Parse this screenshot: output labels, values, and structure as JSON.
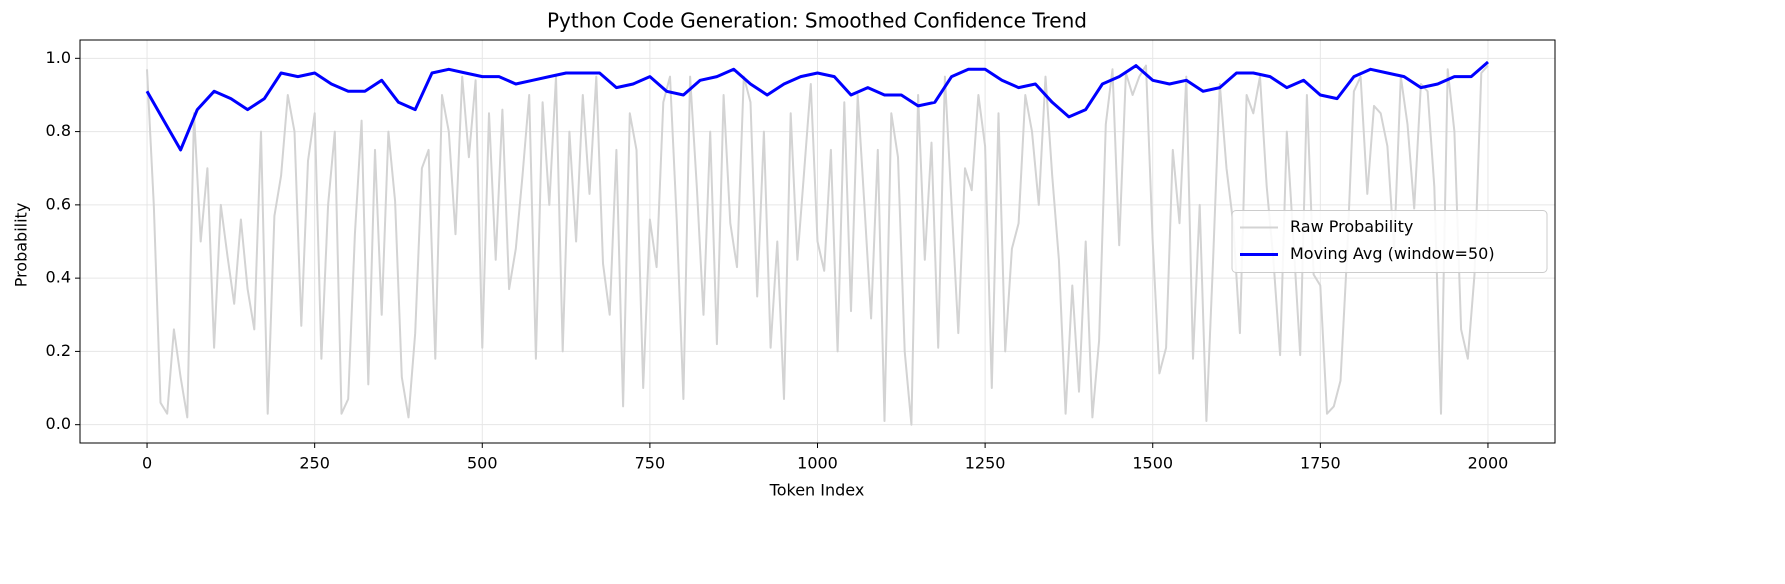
{
  "chart_data": {
    "type": "line",
    "title": "Python Code Generation: Smoothed Confidence Trend",
    "x_label": "Token Index",
    "y_label": "Probability",
    "xlim": [
      -100,
      2100
    ],
    "xticks": [
      0,
      250,
      500,
      750,
      1000,
      1250,
      1500,
      1750,
      2000
    ],
    "ylim": [
      -0.05,
      1.05
    ],
    "yticks": [
      {
        "value": 0,
        "label": "0.0"
      },
      0.2,
      0.4,
      0.6,
      0.8,
      {
        "value": 1,
        "label": "1.0"
      }
    ],
    "grid": true,
    "legend_position": "right",
    "series": [
      {
        "name": "Raw Probability",
        "color": "#d3d3d3",
        "width": 2,
        "x": [
          0,
          10,
          20,
          30,
          40,
          50,
          60,
          70,
          80,
          90,
          100,
          110,
          120,
          130,
          140,
          150,
          160,
          170,
          180,
          190,
          200,
          210,
          220,
          230,
          240,
          250,
          260,
          270,
          280,
          290,
          300,
          310,
          320,
          330,
          340,
          350,
          360,
          370,
          380,
          390,
          400,
          410,
          420,
          430,
          440,
          450,
          460,
          470,
          480,
          490,
          500,
          510,
          520,
          530,
          540,
          550,
          560,
          570,
          580,
          590,
          600,
          610,
          620,
          630,
          640,
          650,
          660,
          670,
          680,
          690,
          700,
          710,
          720,
          730,
          740,
          750,
          760,
          770,
          780,
          790,
          800,
          810,
          820,
          830,
          840,
          850,
          860,
          870,
          880,
          890,
          900,
          910,
          920,
          930,
          940,
          950,
          960,
          970,
          980,
          990,
          1000,
          1010,
          1020,
          1030,
          1040,
          1050,
          1060,
          1070,
          1080,
          1090,
          1100,
          1110,
          1120,
          1130,
          1140,
          1150,
          1160,
          1170,
          1180,
          1190,
          1200,
          1210,
          1220,
          1230,
          1240,
          1250,
          1260,
          1270,
          1280,
          1290,
          1300,
          1310,
          1320,
          1330,
          1340,
          1350,
          1360,
          1370,
          1380,
          1390,
          1400,
          1410,
          1420,
          1430,
          1440,
          1450,
          1460,
          1470,
          1480,
          1490,
          1500,
          1510,
          1520,
          1530,
          1540,
          1550,
          1560,
          1570,
          1580,
          1590,
          1600,
          1610,
          1620,
          1630,
          1640,
          1650,
          1660,
          1670,
          1680,
          1690,
          1700,
          1710,
          1720,
          1730,
          1740,
          1750,
          1760,
          1770,
          1780,
          1790,
          1800,
          1810,
          1820,
          1830,
          1840,
          1850,
          1860,
          1870,
          1880,
          1890,
          1900,
          1910,
          1920,
          1930,
          1940,
          1950,
          1960,
          1970,
          1980,
          1990,
          2000
        ],
        "values": [
          0.97,
          0.6,
          0.06,
          0.03,
          0.26,
          0.13,
          0.02,
          0.85,
          0.5,
          0.7,
          0.21,
          0.6,
          0.46,
          0.33,
          0.56,
          0.37,
          0.26,
          0.8,
          0.03,
          0.57,
          0.68,
          0.9,
          0.8,
          0.27,
          0.72,
          0.85,
          0.18,
          0.6,
          0.8,
          0.03,
          0.07,
          0.52,
          0.83,
          0.11,
          0.75,
          0.3,
          0.8,
          0.61,
          0.13,
          0.02,
          0.25,
          0.7,
          0.75,
          0.18,
          0.9,
          0.8,
          0.52,
          0.95,
          0.73,
          0.94,
          0.21,
          0.85,
          0.45,
          0.86,
          0.37,
          0.48,
          0.68,
          0.9,
          0.18,
          0.88,
          0.6,
          0.95,
          0.2,
          0.8,
          0.5,
          0.9,
          0.63,
          0.95,
          0.44,
          0.3,
          0.75,
          0.05,
          0.85,
          0.75,
          0.1,
          0.56,
          0.43,
          0.88,
          0.95,
          0.56,
          0.07,
          0.95,
          0.65,
          0.3,
          0.8,
          0.22,
          0.9,
          0.55,
          0.43,
          0.95,
          0.88,
          0.35,
          0.8,
          0.21,
          0.5,
          0.07,
          0.85,
          0.45,
          0.69,
          0.93,
          0.5,
          0.42,
          0.75,
          0.2,
          0.88,
          0.31,
          0.9,
          0.6,
          0.29,
          0.75,
          0.01,
          0.85,
          0.73,
          0.2,
          0.0,
          0.9,
          0.45,
          0.77,
          0.21,
          0.95,
          0.6,
          0.25,
          0.7,
          0.64,
          0.9,
          0.76,
          0.1,
          0.85,
          0.2,
          0.48,
          0.55,
          0.9,
          0.8,
          0.6,
          0.95,
          0.68,
          0.45,
          0.03,
          0.38,
          0.09,
          0.5,
          0.02,
          0.23,
          0.82,
          0.97,
          0.49,
          0.96,
          0.9,
          0.95,
          0.98,
          0.5,
          0.14,
          0.21,
          0.75,
          0.55,
          0.95,
          0.18,
          0.6,
          0.01,
          0.45,
          0.93,
          0.7,
          0.55,
          0.25,
          0.9,
          0.85,
          0.95,
          0.65,
          0.45,
          0.19,
          0.8,
          0.5,
          0.19,
          0.9,
          0.41,
          0.38,
          0.03,
          0.05,
          0.12,
          0.47,
          0.91,
          0.95,
          0.63,
          0.87,
          0.85,
          0.76,
          0.48,
          0.95,
          0.82,
          0.59,
          0.93,
          0.91,
          0.65,
          0.03,
          0.97,
          0.8,
          0.26,
          0.18,
          0.41,
          0.96,
          0.98
        ]
      },
      {
        "name": "Moving Avg (window=50)",
        "color": "#0000ff",
        "width": 3,
        "x": [
          0,
          25,
          50,
          75,
          100,
          125,
          150,
          175,
          200,
          225,
          250,
          275,
          300,
          325,
          350,
          375,
          400,
          425,
          450,
          475,
          500,
          525,
          550,
          575,
          600,
          625,
          650,
          675,
          700,
          725,
          750,
          775,
          800,
          825,
          850,
          875,
          900,
          925,
          950,
          975,
          1000,
          1025,
          1050,
          1075,
          1100,
          1125,
          1150,
          1175,
          1200,
          1225,
          1250,
          1275,
          1300,
          1325,
          1350,
          1375,
          1400,
          1425,
          1450,
          1475,
          1500,
          1525,
          1550,
          1575,
          1600,
          1625,
          1650,
          1675,
          1700,
          1725,
          1750,
          1775,
          1800,
          1825,
          1850,
          1875,
          1900,
          1925,
          1950,
          1975,
          2000
        ],
        "values": [
          0.91,
          0.83,
          0.75,
          0.86,
          0.91,
          0.89,
          0.86,
          0.89,
          0.96,
          0.95,
          0.96,
          0.93,
          0.91,
          0.91,
          0.94,
          0.88,
          0.86,
          0.96,
          0.97,
          0.96,
          0.95,
          0.95,
          0.93,
          0.94,
          0.95,
          0.96,
          0.96,
          0.96,
          0.92,
          0.93,
          0.95,
          0.91,
          0.9,
          0.94,
          0.95,
          0.97,
          0.93,
          0.9,
          0.93,
          0.95,
          0.96,
          0.95,
          0.9,
          0.92,
          0.9,
          0.9,
          0.87,
          0.88,
          0.95,
          0.97,
          0.97,
          0.94,
          0.92,
          0.93,
          0.88,
          0.84,
          0.86,
          0.93,
          0.95,
          0.98,
          0.94,
          0.93,
          0.94,
          0.91,
          0.92,
          0.96,
          0.96,
          0.95,
          0.92,
          0.94,
          0.9,
          0.89,
          0.95,
          0.97,
          0.96,
          0.95,
          0.92,
          0.93,
          0.95,
          0.95,
          0.99
        ]
      }
    ]
  }
}
